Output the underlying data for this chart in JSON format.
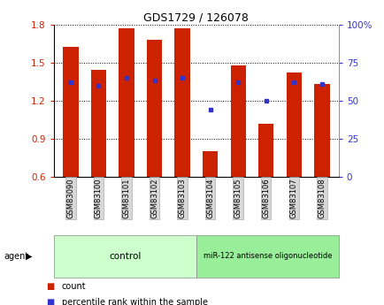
{
  "title": "GDS1729 / 126078",
  "samples": [
    "GSM83090",
    "GSM83100",
    "GSM83101",
    "GSM83102",
    "GSM83103",
    "GSM83104",
    "GSM83105",
    "GSM83106",
    "GSM83107",
    "GSM83108"
  ],
  "count_values": [
    1.62,
    1.44,
    1.77,
    1.68,
    1.77,
    0.8,
    1.48,
    1.02,
    1.42,
    1.33
  ],
  "percentile_values": [
    62,
    60,
    65,
    63,
    65,
    44,
    62,
    50,
    62,
    61
  ],
  "bar_bottom": 0.6,
  "ylim_left": [
    0.6,
    1.8
  ],
  "ylim_right": [
    0,
    100
  ],
  "yticks_left": [
    0.6,
    0.9,
    1.2,
    1.5,
    1.8
  ],
  "yticks_right": [
    0,
    25,
    50,
    75,
    100
  ],
  "bar_color": "#cc2200",
  "dot_color": "#3333cc",
  "plot_bg": "#ffffff",
  "control_label": "control",
  "treatment_label": "miR-122 antisense oligonucleotide",
  "control_color": "#ccffcc",
  "treatment_color": "#99ee99",
  "tick_label_color_left": "#cc2200",
  "tick_label_color_right": "#3333cc",
  "agent_label": "agent",
  "legend_count_label": "count",
  "legend_percentile_label": "percentile rank within the sample",
  "bar_width": 0.55,
  "n_control": 5,
  "n_treatment": 5
}
